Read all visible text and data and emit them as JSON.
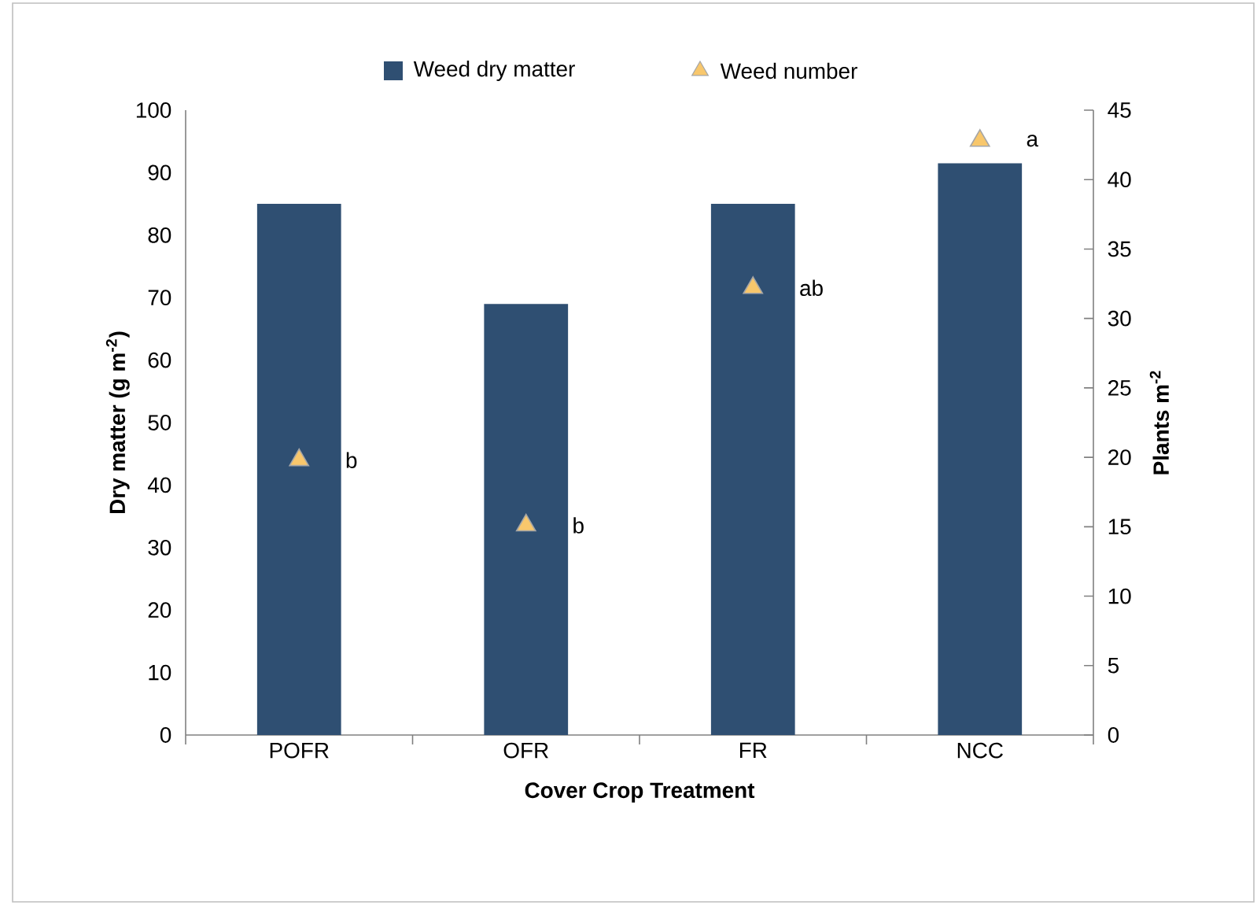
{
  "chart_data": {
    "type": "bar",
    "xlabel": "Cover Crop Treatment",
    "ylabel": "Dry matter (g m$^{-2}$)",
    "y2label": "Plants m$^{-2}$",
    "categories": [
      "POFR",
      "OFR",
      "FR",
      "NCC"
    ],
    "series": [
      {
        "name": "Weed dry matter",
        "color": "#2f4f72",
        "values": [
          85,
          69,
          85,
          91.5
        ]
      },
      {
        "name": "Weed number",
        "type": "scatter",
        "axis": "y2",
        "marker": "triangle",
        "color": "#f8c76c",
        "values": [
          19.8,
          15.1,
          32.2,
          42.8
        ]
      }
    ],
    "ylim": [
      0,
      100
    ],
    "yticks": [
      0,
      10,
      20,
      30,
      40,
      50,
      60,
      70,
      80,
      90,
      100
    ],
    "y2lim": [
      0,
      45
    ],
    "y2ticks": [
      0,
      5,
      10,
      15,
      20,
      25,
      30,
      35,
      40,
      45
    ],
    "legend": "top",
    "grid": false,
    "annotations": [
      "b",
      "b",
      "ab",
      "a"
    ]
  }
}
